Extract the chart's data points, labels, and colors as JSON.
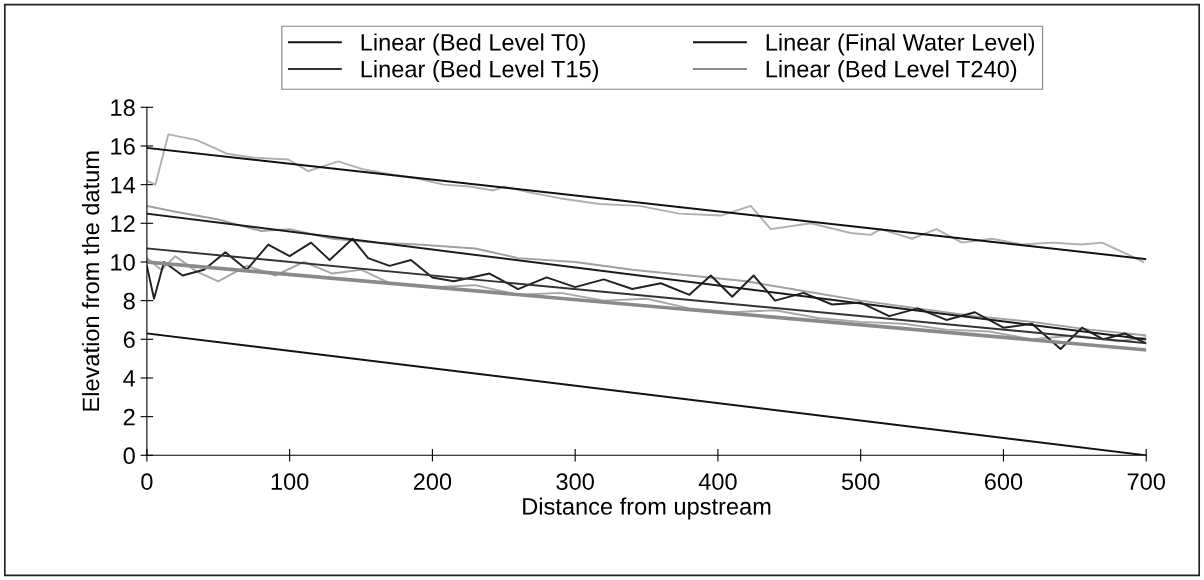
{
  "chart_data": {
    "type": "line",
    "xlabel": "Distance from upstream",
    "ylabel": "Elevation from the datum",
    "xlim": [
      0,
      700
    ],
    "xticks": [
      0,
      100,
      200,
      300,
      400,
      500,
      600,
      700
    ],
    "ylim": [
      0,
      18
    ],
    "yticks": [
      0,
      2,
      4,
      6,
      8,
      10,
      12,
      14,
      16,
      18
    ],
    "grid": false,
    "legend": "top",
    "marker": "none",
    "line_style": "solid",
    "series": [
      {
        "color": "#b0b0b0",
        "x": [
          0,
          6,
          15,
          35,
          56,
          74,
          99,
          113,
          134,
          151,
          173,
          190,
          208,
          226,
          243,
          250,
          268,
          289,
          317,
          345,
          373,
          402,
          423,
          437,
          465,
          493,
          507,
          514,
          536,
          553,
          571,
          592,
          613,
          634,
          655,
          669,
          684,
          698
        ],
        "values": [
          14.2,
          14.0,
          16.6,
          16.3,
          15.6,
          15.4,
          15.3,
          14.7,
          15.2,
          14.8,
          14.5,
          14.3,
          14.0,
          13.9,
          13.7,
          13.9,
          13.6,
          13.3,
          13.0,
          12.9,
          12.5,
          12.4,
          12.9,
          11.7,
          12.0,
          11.5,
          11.4,
          11.7,
          11.2,
          11.7,
          11.0,
          11.2,
          10.9,
          11.0,
          10.9,
          11.0,
          10.5,
          10.0
        ]
      },
      {
        "color": "#a0a0a0",
        "x": [
          0,
          20,
          50,
          80,
          100,
          130,
          160,
          190,
          230,
          260,
          300,
          340,
          380,
          420,
          460,
          500,
          540,
          580,
          620,
          660,
          700
        ],
        "values": [
          12.9,
          12.6,
          12.2,
          11.6,
          11.7,
          11.2,
          11.0,
          10.9,
          10.7,
          10.2,
          10.0,
          9.6,
          9.3,
          9.0,
          8.5,
          8.0,
          7.6,
          7.2,
          6.9,
          6.5,
          6.2
        ]
      },
      {
        "color": "#a8a8a8",
        "x": [
          0,
          10,
          20,
          35,
          50,
          70,
          90,
          110,
          130,
          150,
          170,
          200,
          230,
          260,
          290,
          320,
          350,
          380,
          410,
          440,
          470,
          500,
          530,
          560,
          590,
          620,
          650,
          680,
          700
        ],
        "values": [
          10.2,
          9.6,
          10.3,
          9.5,
          9.0,
          9.8,
          9.3,
          10.0,
          9.4,
          9.6,
          8.9,
          8.7,
          8.8,
          8.3,
          8.4,
          8.0,
          8.1,
          7.6,
          7.4,
          7.5,
          7.1,
          6.9,
          6.8,
          6.5,
          6.4,
          6.0,
          6.2,
          5.9,
          6.1
        ]
      },
      {
        "color": "#222222",
        "x": [
          0,
          5,
          12,
          25,
          40,
          55,
          70,
          85,
          100,
          115,
          128,
          144,
          155,
          170,
          185,
          200,
          215,
          240,
          260,
          280,
          300,
          320,
          340,
          360,
          380,
          395,
          410,
          425,
          440,
          460,
          480,
          500,
          520,
          540,
          560,
          580,
          600,
          620,
          640,
          655,
          670,
          685,
          700
        ],
        "values": [
          9.8,
          8.1,
          10.0,
          9.3,
          9.6,
          10.5,
          9.6,
          10.9,
          10.3,
          11.0,
          10.1,
          11.2,
          10.2,
          9.8,
          10.1,
          9.2,
          9.0,
          9.4,
          8.6,
          9.2,
          8.7,
          9.1,
          8.6,
          8.9,
          8.3,
          9.3,
          8.2,
          9.3,
          8.0,
          8.4,
          7.8,
          7.9,
          7.2,
          7.6,
          7.0,
          7.4,
          6.6,
          6.8,
          5.5,
          6.6,
          6.0,
          6.3,
          5.8
        ]
      },
      {
        "color": "#1a1a1a",
        "x": [
          0,
          700
        ],
        "values": [
          12.5,
          6.0
        ]
      },
      {
        "name": "Linear (Bed Level T0)",
        "color": "#111111",
        "x": [
          0,
          700
        ],
        "values": [
          6.3,
          0
        ]
      },
      {
        "name": "Linear (Bed Level T15)",
        "color": "#333333",
        "x": [
          0,
          700
        ],
        "values": [
          10.7,
          5.8
        ]
      },
      {
        "name": "Linear (Final Water Level)",
        "color": "#111111",
        "x": [
          0,
          700
        ],
        "values": [
          15.9,
          10.15
        ]
      },
      {
        "name": "Linear (Bed Level T240)",
        "color": "#8a8a8a",
        "x": [
          0,
          700
        ],
        "values": [
          10.0,
          5.45
        ]
      }
    ]
  }
}
